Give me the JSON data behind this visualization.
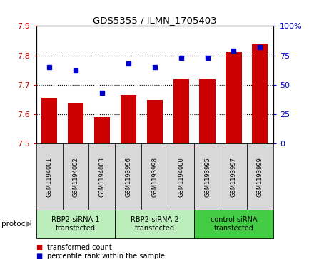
{
  "title": "GDS5355 / ILMN_1705403",
  "samples": [
    "GSM1194001",
    "GSM1194002",
    "GSM1194003",
    "GSM1193996",
    "GSM1193998",
    "GSM1194000",
    "GSM1193995",
    "GSM1193997",
    "GSM1193999"
  ],
  "red_values": [
    7.655,
    7.64,
    7.59,
    7.665,
    7.65,
    7.72,
    7.72,
    7.81,
    7.84
  ],
  "blue_values": [
    65,
    62,
    43,
    68,
    65,
    73,
    73,
    79,
    82
  ],
  "ylim_left": [
    7.5,
    7.9
  ],
  "ylim_right": [
    0,
    100
  ],
  "yticks_left": [
    7.5,
    7.6,
    7.7,
    7.8,
    7.9
  ],
  "yticks_right": [
    0,
    25,
    50,
    75,
    100
  ],
  "groups": [
    {
      "label": "RBP2-siRNA-1\ntransfected",
      "indices": [
        0,
        1,
        2
      ],
      "color": "#bbeebb"
    },
    {
      "label": "RBP2-siRNA-2\ntransfected",
      "indices": [
        3,
        4,
        5
      ],
      "color": "#bbeebb"
    },
    {
      "label": "control siRNA\ntransfected",
      "indices": [
        6,
        7,
        8
      ],
      "color": "#44cc44"
    }
  ],
  "bar_color": "#cc0000",
  "dot_color": "#0000cc",
  "label_area_color": "#d8d8d8",
  "protocol_label": "protocol",
  "legend_items": [
    {
      "color": "#cc0000",
      "label": "transformed count"
    },
    {
      "color": "#0000cc",
      "label": "percentile rank within the sample"
    }
  ]
}
